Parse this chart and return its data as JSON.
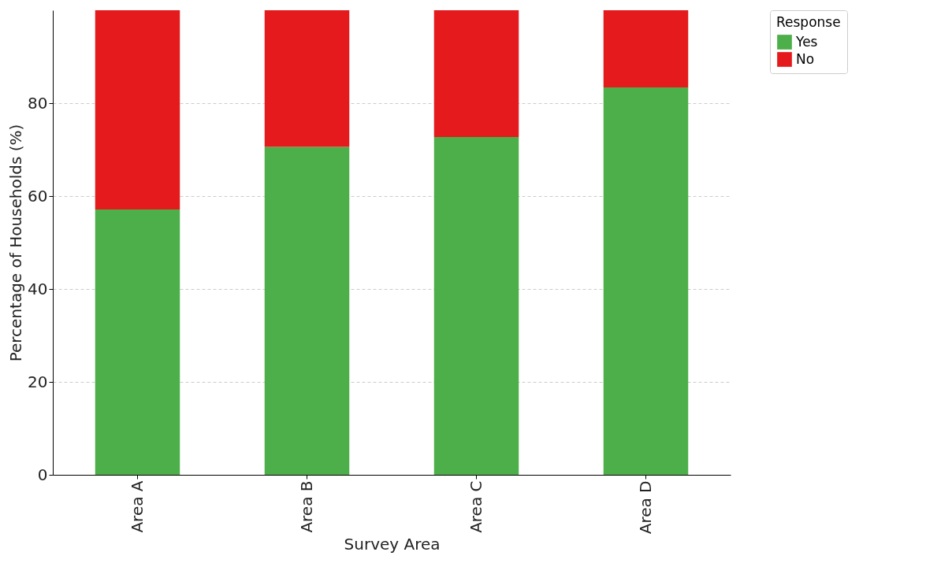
{
  "chart_data": {
    "type": "bar",
    "xlabel": "Survey Area",
    "ylabel": "Percentage of Households (%)",
    "legend_title": "Response",
    "categories": [
      "Area A",
      "Area B",
      "Area C",
      "Area D"
    ],
    "stacked": true,
    "series": [
      {
        "name": "Yes",
        "color": "#4daf4a",
        "values": [
          57.1,
          70.6,
          72.7,
          83.4
        ]
      },
      {
        "name": "No",
        "color": "#e41a1c",
        "values": [
          42.9,
          29.4,
          27.3,
          16.6
        ]
      }
    ],
    "ylim": [
      0,
      100
    ],
    "yticks": [
      0,
      20,
      40,
      60,
      80
    ],
    "grid": true,
    "legend": "top right"
  }
}
